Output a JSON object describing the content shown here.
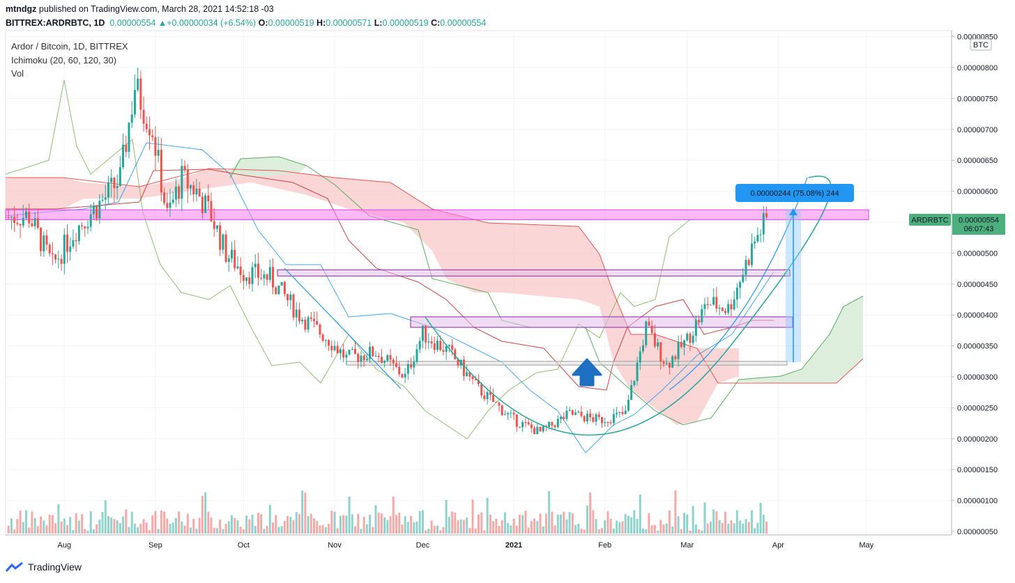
{
  "header": {
    "publisher_line": "mtndgz published on TradingView.com, March 28, 2021 14:52:18 -03",
    "publisher": "mtndgz",
    "published_text": " published on TradingView.com, March 28, 2021 14:52:18 -03",
    "symbol": "BITTREX:ARDRBTC, 1D",
    "last": "0.00000554",
    "change": "+0.00000034 (+6.54%)",
    "o_label": "O:",
    "o": "0.00000519",
    "h_label": "H:",
    "h": "0.00000571",
    "l_label": "L:",
    "l": "0.00000519",
    "c_label": "C:",
    "c": "0.00000554"
  },
  "legend": {
    "title": "Ardor / Bitcoin, 1D, BITTREX",
    "indicator": "Ichimoku (20, 60, 120, 30)",
    "volume": "Vol"
  },
  "price_axis": {
    "currency": "BTC",
    "current_label": "ARDRBTC",
    "current_price": "0.00000554",
    "countdown": "06:07:43"
  },
  "measure_label": "0.00000244 (75.08%) 244",
  "footer": {
    "brand": "TradingView"
  },
  "colors": {
    "up": "#26a69a",
    "down": "#ef5350",
    "magenta_box": "#e040fb",
    "cloud_red": "#f8c8c8",
    "cloud_green": "#d9ecd9",
    "measure": "#2196f3"
  },
  "chart_data": {
    "type": "candlestick",
    "title": "Ardor / Bitcoin, 1D, BITTREX",
    "ylim": [
      5e-07,
      8.5e-06
    ],
    "y_ticks": [
      "0.00000050",
      "0.00000100",
      "0.00000150",
      "0.00000200",
      "0.00000250",
      "0.00000300",
      "0.00000350",
      "0.00000400",
      "0.00000450",
      "0.00000500",
      "0.00000550",
      "0.00000600",
      "0.00000650",
      "0.00000700",
      "0.00000750",
      "0.00000800",
      "0.00000850"
    ],
    "x_ticks": [
      "Aug",
      "Sep",
      "Oct",
      "Nov",
      "Dec",
      "2021",
      "Feb",
      "Mar",
      "Apr",
      "May"
    ],
    "x_range": [
      "2020-07-12",
      "2021-05-30"
    ],
    "series": [
      {
        "name": "Price",
        "close_points": [
          [
            "2020-07-13",
            5.58e-06
          ],
          [
            "2020-07-20",
            5.6e-06
          ],
          [
            "2020-07-24",
            5.2e-06
          ],
          [
            "2020-07-28",
            4.8e-06
          ],
          [
            "2020-08-05",
            5.4e-06
          ],
          [
            "2020-08-15",
            5.9e-06
          ],
          [
            "2020-08-20",
            6.2e-06
          ],
          [
            "2020-08-25",
            7.7e-06
          ],
          [
            "2020-08-31",
            7e-06
          ],
          [
            "2020-09-05",
            5.6e-06
          ],
          [
            "2020-09-10",
            6.2e-06
          ],
          [
            "2020-09-15",
            6e-06
          ],
          [
            "2020-09-20",
            5.6e-06
          ],
          [
            "2020-09-25",
            5e-06
          ],
          [
            "2020-10-01",
            4.7e-06
          ],
          [
            "2020-10-10",
            4.6e-06
          ],
          [
            "2020-10-20",
            4e-06
          ],
          [
            "2020-10-30",
            3.6e-06
          ],
          [
            "2020-11-05",
            3.3e-06
          ],
          [
            "2020-11-15",
            3.4e-06
          ],
          [
            "2020-11-25",
            3e-06
          ],
          [
            "2020-12-01",
            3.7e-06
          ],
          [
            "2020-12-10",
            3.4e-06
          ],
          [
            "2020-12-20",
            2.8e-06
          ],
          [
            "2021-01-01",
            2.3e-06
          ],
          [
            "2021-01-10",
            2.1e-06
          ],
          [
            "2021-01-20",
            2.4e-06
          ],
          [
            "2021-01-30",
            2.3e-06
          ],
          [
            "2021-02-08",
            2.4e-06
          ],
          [
            "2021-02-15",
            3.8e-06
          ],
          [
            "2021-02-22",
            3.2e-06
          ],
          [
            "2021-03-01",
            3.6e-06
          ],
          [
            "2021-03-08",
            4.2e-06
          ],
          [
            "2021-03-15",
            4.1e-06
          ],
          [
            "2021-03-20",
            4.7e-06
          ],
          [
            "2021-03-24",
            5.2e-06
          ],
          [
            "2021-03-28",
            5.54e-06
          ]
        ]
      }
    ],
    "annotations": [
      {
        "type": "box",
        "label": "",
        "y": [
          5.54e-06,
          5.7e-06
        ]
      },
      {
        "type": "box",
        "label": "",
        "y": [
          4.63e-06,
          4.73e-06
        ]
      },
      {
        "type": "box",
        "label": "",
        "y": [
          3.8e-06,
          3.97e-06
        ]
      },
      {
        "type": "box",
        "label": "",
        "y": [
          3.19e-06,
          3.25e-06
        ]
      },
      {
        "type": "measure",
        "label": "0.00000244 (75.08%) 244"
      },
      {
        "type": "arrow-up",
        "label": ""
      },
      {
        "type": "curve",
        "label": ""
      }
    ]
  }
}
